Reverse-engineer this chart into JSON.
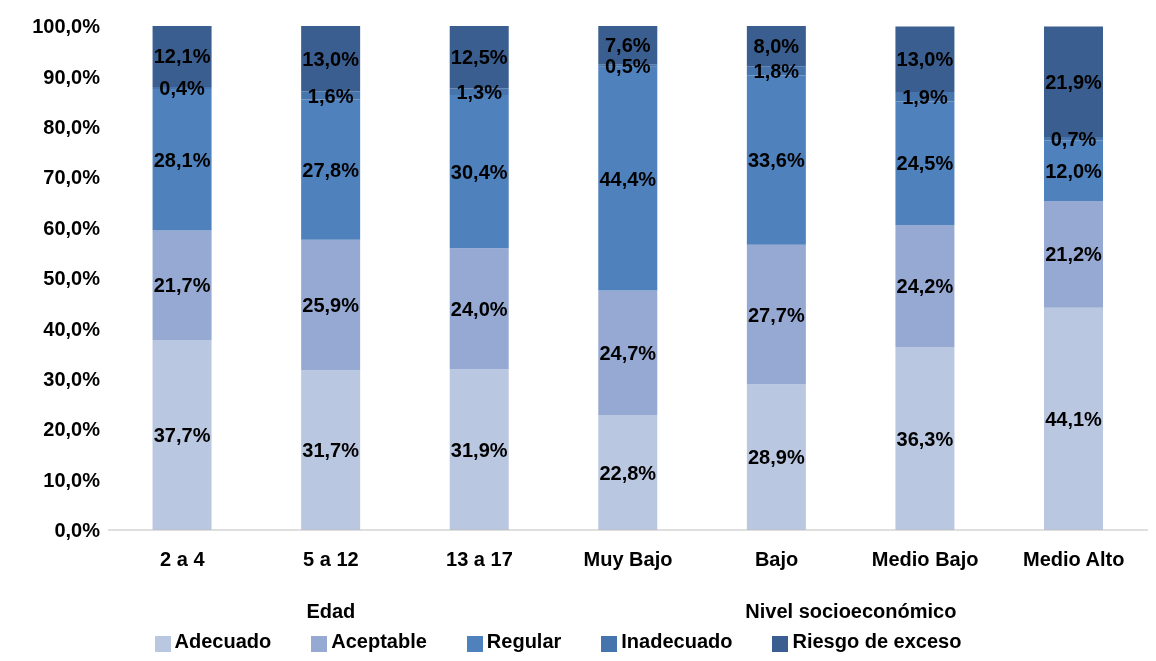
{
  "chart_data": {
    "type": "bar",
    "stacked": true,
    "categories": [
      "2 a 4",
      "5 a 12",
      "13 a 17",
      "Muy Bajo",
      "Bajo",
      "Medio Bajo",
      "Medio Alto"
    ],
    "annotations": [
      "Edad",
      "Nivel socioeconómico"
    ],
    "series": [
      {
        "name": "Adecuado",
        "color": "#bac7e1",
        "values": [
          37.7,
          31.7,
          31.9,
          22.8,
          28.9,
          36.3,
          44.1
        ],
        "value_labels": [
          "37,7%",
          "31,7%",
          "31,9%",
          "22,8%",
          "28,9%",
          "36,3%",
          "44,1%"
        ]
      },
      {
        "name": "Aceptable",
        "color": "#95a9d3",
        "values": [
          21.7,
          25.9,
          24.0,
          24.7,
          27.7,
          24.2,
          21.2
        ],
        "value_labels": [
          "21,7%",
          "25,9%",
          "24,0%",
          "24,7%",
          "27,7%",
          "24,2%",
          "21,2%"
        ]
      },
      {
        "name": "Regular",
        "color": "#4f81bd",
        "values": [
          28.1,
          27.8,
          30.4,
          44.4,
          33.6,
          24.5,
          12.0
        ],
        "value_labels": [
          "28,1%",
          "27,8%",
          "30,4%",
          "44,4%",
          "33,6%",
          "24,5%",
          "12,0%"
        ]
      },
      {
        "name": "Inadecuado",
        "color": "#4674ad",
        "values": [
          0.4,
          1.6,
          1.3,
          0.5,
          1.8,
          1.9,
          0.7
        ],
        "value_labels": [
          "0,4%",
          "1,6%",
          "1,3%",
          "0,5%",
          "1,8%",
          "1,9%",
          "0,7%"
        ]
      },
      {
        "name": "Riesgo de exceso",
        "color": "#3a5e8f",
        "values": [
          12.1,
          13.0,
          12.5,
          7.6,
          8.0,
          13.0,
          21.9
        ],
        "value_labels": [
          "12,1%",
          "13,0%",
          "12,5%",
          "7,6%",
          "8,0%",
          "13,0%",
          "21,9%"
        ]
      }
    ],
    "ylim": [
      0,
      100
    ],
    "yticks": [
      {
        "value": 0,
        "label": "0,0%"
      },
      {
        "value": 10,
        "label": "10,0%"
      },
      {
        "value": 20,
        "label": "20,0%"
      },
      {
        "value": 30,
        "label": "30,0%"
      },
      {
        "value": 40,
        "label": "40,0%"
      },
      {
        "value": 50,
        "label": "50,0%"
      },
      {
        "value": 60,
        "label": "60,0%"
      },
      {
        "value": 70,
        "label": "70,0%"
      },
      {
        "value": 80,
        "label": "80,0%"
      },
      {
        "value": 90,
        "label": "90,0%"
      },
      {
        "value": 100,
        "label": "100,0%"
      }
    ],
    "grid": false,
    "legend": "bottom"
  }
}
